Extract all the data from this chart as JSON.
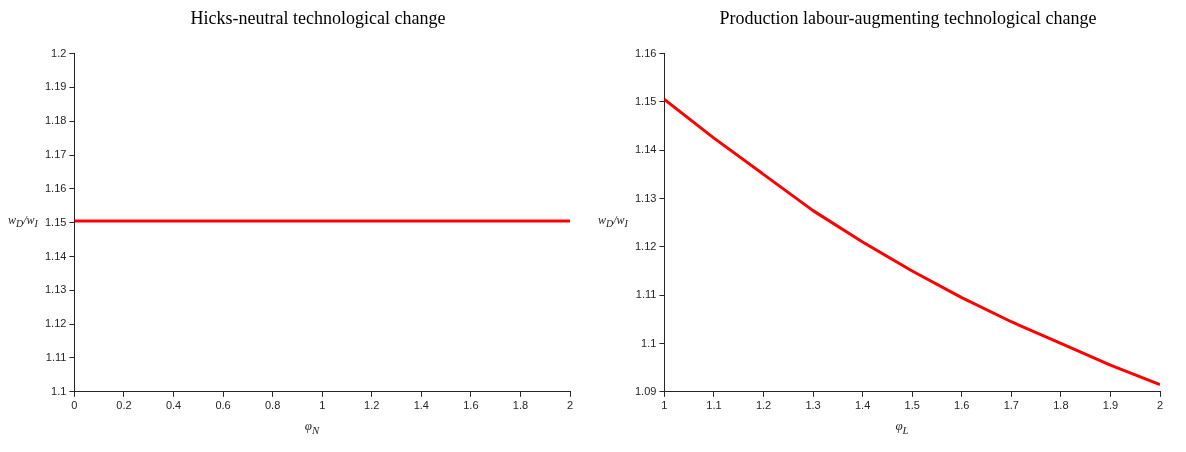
{
  "chart_data": [
    {
      "type": "line",
      "title": "Hicks-neutral technological change",
      "xlabel": "φ$_{N}$",
      "ylabel": "w$_{D}$/w$_{I}$",
      "x": [
        0,
        0.5,
        1,
        1.5,
        2
      ],
      "series": [
        {
          "color": "#ff0000",
          "values": [
            1.1505,
            1.1505,
            1.1505,
            1.1505,
            1.1505
          ]
        }
      ],
      "xlim": [
        0,
        2
      ],
      "xticks": [
        0,
        0.2,
        0.4,
        0.6,
        0.8,
        1,
        1.2,
        1.4,
        1.6,
        1.8,
        2
      ],
      "ylim": [
        1.1,
        1.2
      ],
      "yticks": [
        1.1,
        1.11,
        1.12,
        1.13,
        1.14,
        1.15,
        1.16,
        1.17,
        1.18,
        1.19,
        1.2
      ]
    },
    {
      "type": "line",
      "title": "Production labour-augmenting technological change",
      "xlabel": "φ$_{L}$",
      "ylabel": "w$_{D}$/w$_{I}$",
      "x": [
        1,
        1.1,
        1.2,
        1.3,
        1.4,
        1.5,
        1.6,
        1.7,
        1.8,
        1.9,
        2
      ],
      "series": [
        {
          "color": "#ff0000",
          "values": [
            1.1505,
            1.1425,
            1.135,
            1.1275,
            1.121,
            1.115,
            1.1095,
            1.1045,
            1.1,
            1.0955,
            1.0915
          ]
        }
      ],
      "xlim": [
        1,
        2
      ],
      "xticks": [
        1,
        1.1,
        1.2,
        1.3,
        1.4,
        1.5,
        1.6,
        1.7,
        1.8,
        1.9,
        2
      ],
      "ylim": [
        1.09,
        1.16
      ],
      "yticks": [
        1.09,
        1.1,
        1.11,
        1.12,
        1.13,
        1.14,
        1.15,
        1.16
      ]
    }
  ]
}
